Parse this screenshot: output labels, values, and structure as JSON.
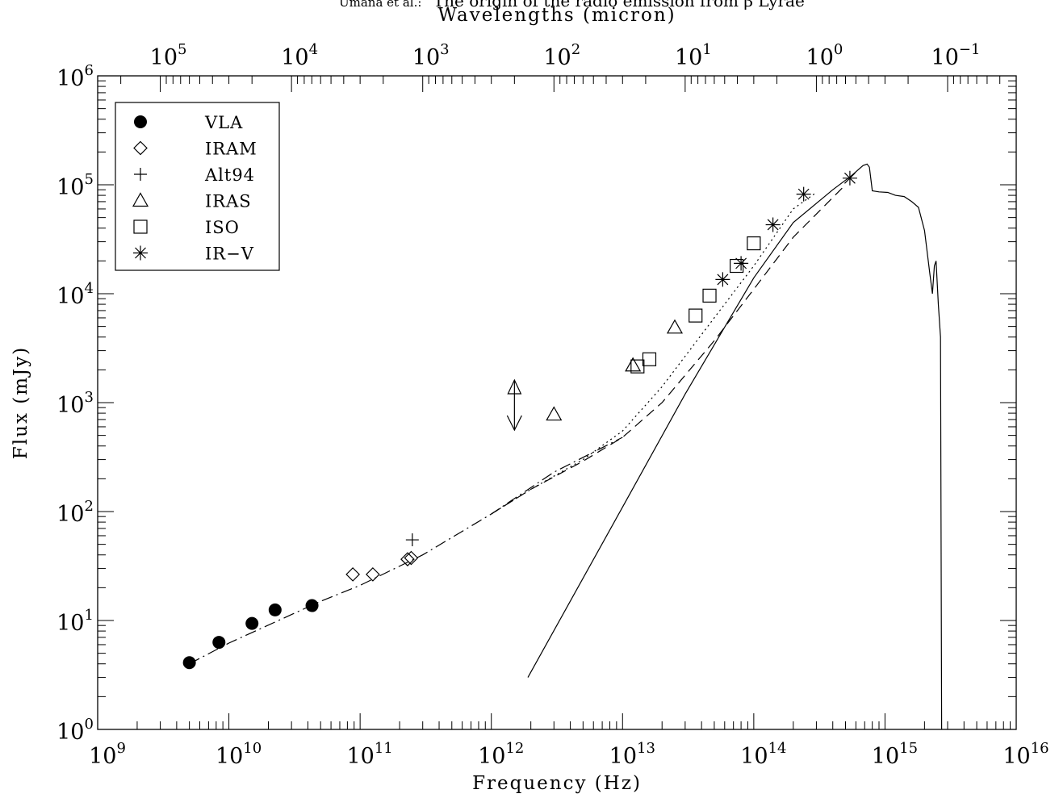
{
  "header": {
    "running_title_prefix": "Umana et al.:",
    "running_title_main": "The origin of the radio emission from β Lyrae"
  },
  "chart_data": {
    "type": "scatter",
    "title": "",
    "xlabel": "Frequency  (Hz)",
    "ylabel": "Flux  (mJy)",
    "top_xlabel": "Wavelengths (micron)",
    "xscale": "log",
    "yscale": "log",
    "xlim": [
      1000000000.0,
      1e+16
    ],
    "ylim": [
      1,
      1000000.0
    ],
    "top_xlim_micron": [
      300000,
      0.03
    ],
    "grid": false,
    "legend_position": "top-left",
    "x_tick_labels": [
      {
        "base": "10",
        "exp": "9",
        "value": 1000000000.0
      },
      {
        "base": "10",
        "exp": "10",
        "value": 10000000000.0
      },
      {
        "base": "10",
        "exp": "11",
        "value": 100000000000.0
      },
      {
        "base": "10",
        "exp": "12",
        "value": 1000000000000.0
      },
      {
        "base": "10",
        "exp": "13",
        "value": 10000000000000.0
      },
      {
        "base": "10",
        "exp": "14",
        "value": 100000000000000.0
      },
      {
        "base": "10",
        "exp": "15",
        "value": 1000000000000000.0
      },
      {
        "base": "10",
        "exp": "16",
        "value": 1e+16
      }
    ],
    "y_tick_labels": [
      {
        "base": "10",
        "exp": "0",
        "value": 1
      },
      {
        "base": "10",
        "exp": "1",
        "value": 10
      },
      {
        "base": "10",
        "exp": "2",
        "value": 100
      },
      {
        "base": "10",
        "exp": "3",
        "value": 1000
      },
      {
        "base": "10",
        "exp": "4",
        "value": 10000
      },
      {
        "base": "10",
        "exp": "5",
        "value": 100000
      },
      {
        "base": "10",
        "exp": "6",
        "value": 1000000
      }
    ],
    "top_tick_labels": [
      {
        "base": "10",
        "exp": "5",
        "value": 100000
      },
      {
        "base": "10",
        "exp": "4",
        "value": 10000
      },
      {
        "base": "10",
        "exp": "3",
        "value": 1000
      },
      {
        "base": "10",
        "exp": "2",
        "value": 100
      },
      {
        "base": "10",
        "exp": "1",
        "value": 10
      },
      {
        "base": "10",
        "exp": "0",
        "value": 1
      },
      {
        "base": "10",
        "exp": "−1",
        "value": 0.1
      }
    ],
    "series": [
      {
        "name": "VLA",
        "marker": "filled-circle",
        "points": [
          [
            5000000000.0,
            4.1
          ],
          [
            8400000000.0,
            6.3
          ],
          [
            15000000000.0,
            9.4
          ],
          [
            22500000000.0,
            12.5
          ],
          [
            43000000000.0,
            13.7
          ]
        ]
      },
      {
        "name": "IRAM",
        "marker": "diamond",
        "points": [
          [
            88000000000.0,
            26.5
          ],
          [
            125000000000.0,
            26.5
          ],
          [
            230000000000.0,
            36.5
          ],
          [
            245000000000.0,
            37.5
          ]
        ]
      },
      {
        "name": "Alt94",
        "marker": "plus",
        "points": [
          [
            250000000000.0,
            55
          ]
        ]
      },
      {
        "name": "IRAS",
        "marker": "triangle",
        "points": [
          [
            3000000000000.0,
            780
          ],
          [
            12000000000000.0,
            2200
          ],
          [
            25000000000000.0,
            4900
          ]
        ]
      },
      {
        "name": "ISO",
        "marker": "square",
        "points": [
          [
            13000000000000.0,
            2150
          ],
          [
            16000000000000.0,
            2500
          ],
          [
            36000000000000.0,
            6300
          ],
          [
            46000000000000.0,
            9600
          ],
          [
            74000000000000.0,
            18000
          ],
          [
            100000000000000.0,
            29000
          ]
        ]
      },
      {
        "name": "IR-V",
        "marker": "asterisk",
        "points": [
          [
            58000000000000.0,
            13500
          ],
          [
            80000000000000.0,
            19000
          ],
          [
            140000000000000.0,
            43000
          ],
          [
            240000000000000.0,
            82000
          ],
          [
            540000000000000.0,
            115000
          ]
        ]
      }
    ],
    "upper_limit": {
      "x": 1500000000000.0,
      "y": 1000
    },
    "curves": [
      {
        "style": "dash-dot",
        "points": [
          [
            5000000000.0,
            4
          ],
          [
            10000000000.0,
            6.2
          ],
          [
            50000000000.0,
            15
          ],
          [
            100000000000.0,
            21
          ],
          [
            300000000000.0,
            40
          ],
          [
            1000000000000.0,
            95
          ],
          [
            3000000000000.0,
            230
          ],
          [
            10000000000000.0,
            480
          ]
        ]
      },
      {
        "style": "dotted",
        "points": [
          [
            1000000000000.0,
            95
          ],
          [
            2000000000000.0,
            160
          ],
          [
            5000000000000.0,
            300
          ],
          [
            10000000000000.0,
            550
          ],
          [
            20000000000000.0,
            1400
          ],
          [
            50000000000000.0,
            6000
          ],
          [
            100000000000000.0,
            18000
          ],
          [
            200000000000000.0,
            60000
          ],
          [
            300000000000000.0,
            85000
          ]
        ]
      },
      {
        "style": "dashed",
        "points": [
          [
            1000000000000.0,
            95
          ],
          [
            2000000000000.0,
            160
          ],
          [
            5000000000000.0,
            290
          ],
          [
            10000000000000.0,
            480
          ],
          [
            20000000000000.0,
            1000
          ],
          [
            50000000000000.0,
            3700
          ],
          [
            100000000000000.0,
            11000
          ],
          [
            200000000000000.0,
            33000
          ],
          [
            500000000000000.0,
            100000
          ]
        ]
      },
      {
        "style": "solid",
        "points": [
          [
            1900000000000.0,
            3
          ],
          [
            10000000000000.0,
            110
          ],
          [
            30000000000000.0,
            1200
          ],
          [
            100000000000000.0,
            14000
          ],
          [
            200000000000000.0,
            45000
          ],
          [
            400000000000000.0,
            90000
          ],
          [
            550000000000000.0,
            120000
          ],
          [
            680000000000000.0,
            150000
          ],
          [
            730000000000000.0,
            155000
          ],
          [
            760000000000000.0,
            145000
          ],
          [
            800000000000000.0,
            88000
          ],
          [
            900000000000000.0,
            86000
          ],
          [
            1050000000000000.0,
            85000
          ],
          [
            1200000000000000.0,
            80000
          ],
          [
            1400000000000000.0,
            78000
          ],
          [
            1600000000000000.0,
            70000
          ],
          [
            1800000000000000.0,
            62000
          ],
          [
            2000000000000000.0,
            38000
          ],
          [
            2200000000000000.0,
            15000
          ],
          [
            2300000000000000.0,
            10000
          ],
          [
            2380000000000000.0,
            18000
          ],
          [
            2450000000000000.0,
            20000
          ],
          [
            2550000000000000.0,
            8000
          ],
          [
            2650000000000000.0,
            4000
          ],
          [
            2700000000000000.0,
            1
          ]
        ]
      }
    ],
    "legend": [
      {
        "label": "VLA",
        "marker": "filled-circle"
      },
      {
        "label": "IRAM",
        "marker": "diamond"
      },
      {
        "label": "Alt94",
        "marker": "plus"
      },
      {
        "label": "IRAS",
        "marker": "triangle"
      },
      {
        "label": "ISO",
        "marker": "square"
      },
      {
        "label": "IR−V",
        "marker": "asterisk"
      }
    ]
  }
}
